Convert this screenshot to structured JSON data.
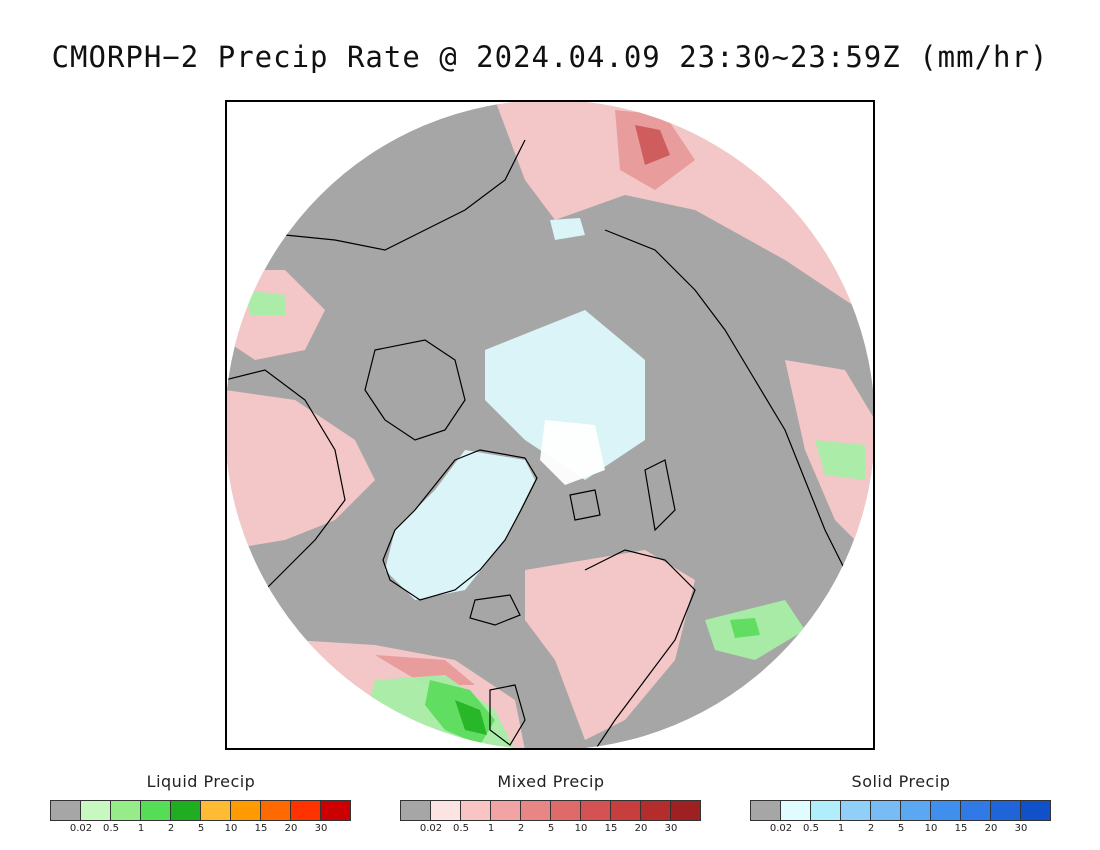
{
  "title": "CMORPH−2 Precip Rate @ 2024.04.09 23:30~23:59Z (mm/hr)",
  "map": {
    "projection": "north-polar-stereographic",
    "colors": {
      "no_precip": "#a6a6a6",
      "light_mixed": "#f7c8c8",
      "mid_mixed": "#e79a9a",
      "heavy_mixed": "#cf5a5a",
      "light_snow": "#dcf8fc",
      "heavy_snow": "#ffffff",
      "light_liquid": "#a7eea7",
      "mid_liquid": "#5ddc5d",
      "heavy_liquid": "#25b425",
      "coastline": "#000000",
      "frame_bg": "#ffffff"
    }
  },
  "legends": [
    {
      "title": "Liquid Precip",
      "ticks": [
        "0.02",
        "0.5",
        "1",
        "2",
        "5",
        "10",
        "15",
        "20",
        "30"
      ],
      "colors": [
        "#a6a6a6",
        "#c8f7c0",
        "#96ec88",
        "#55dd55",
        "#1fae1f",
        "#ffbb33",
        "#ff9a00",
        "#ff6a00",
        "#ff3300",
        "#cc0000"
      ]
    },
    {
      "title": "Mixed Precip",
      "ticks": [
        "0.02",
        "0.5",
        "1",
        "2",
        "5",
        "10",
        "15",
        "20",
        "30"
      ],
      "colors": [
        "#a6a6a6",
        "#fde4e4",
        "#f9c4c4",
        "#f2a4a4",
        "#e88686",
        "#de6a6a",
        "#d45252",
        "#c83e3e",
        "#b52c2c",
        "#9e2020"
      ]
    },
    {
      "title": "Solid Precip",
      "ticks": [
        "0.02",
        "0.5",
        "1",
        "2",
        "5",
        "10",
        "15",
        "20",
        "30"
      ],
      "colors": [
        "#a6a6a6",
        "#e0fcff",
        "#b0eefc",
        "#90cff7",
        "#78bcf5",
        "#5aa8f2",
        "#3f90ee",
        "#2f7ae6",
        "#1f64d9",
        "#1050c8"
      ]
    }
  ]
}
